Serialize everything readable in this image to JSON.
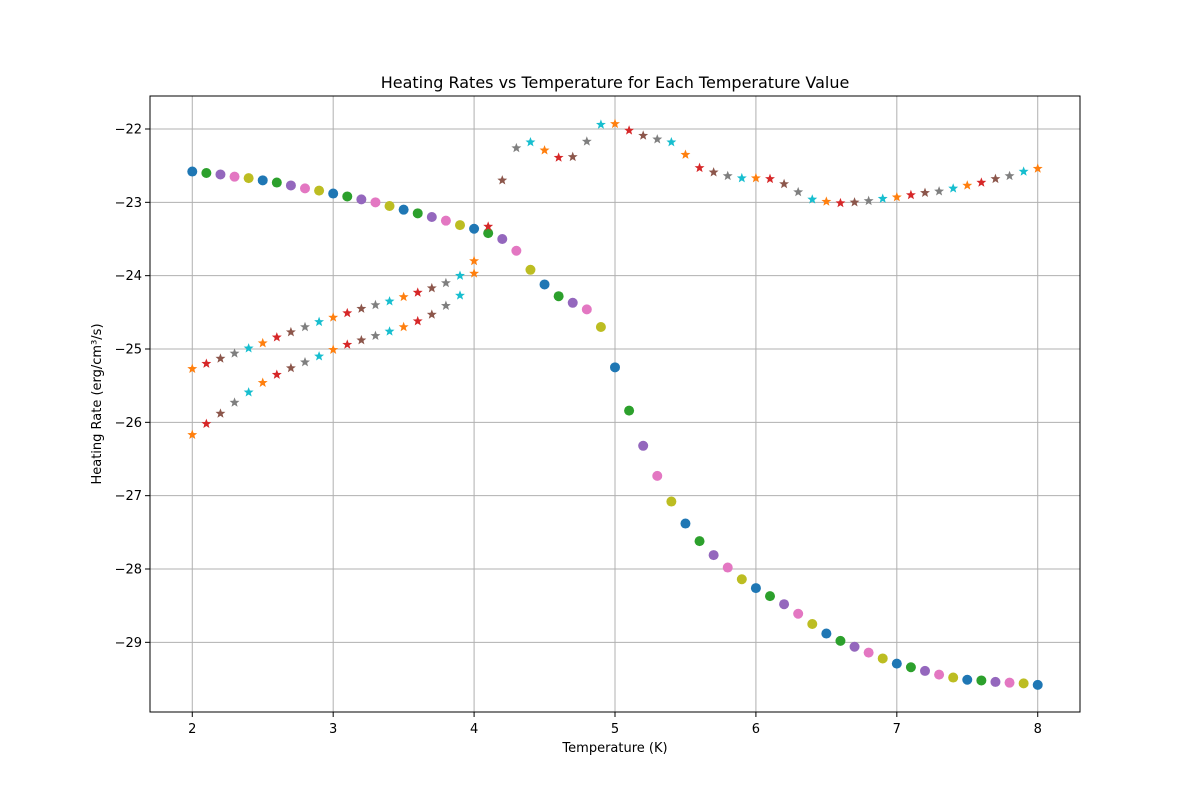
{
  "chart_data": {
    "type": "scatter",
    "title": "Heating Rates vs Temperature for Each Temperature Value",
    "xlabel": "Temperature (K)",
    "ylabel": "Heating Rate (erg/cm³/s)",
    "xlim": [
      1.7,
      8.3
    ],
    "ylim": [
      -29.95,
      -21.55
    ],
    "xticks": [
      2,
      3,
      4,
      5,
      6,
      7,
      8
    ],
    "xtick_labels": [
      "2",
      "3",
      "4",
      "5",
      "6",
      "7",
      "8"
    ],
    "yticks": [
      -22,
      -23,
      -24,
      -25,
      -26,
      -27,
      -28,
      -29
    ],
    "ytick_labels": [
      "−22",
      "−23",
      "−24",
      "−25",
      "−26",
      "−27",
      "−28",
      "−29"
    ],
    "grid": true,
    "palette": [
      "#1f77b4",
      "#2ca02c",
      "#9467bd",
      "#e377c2",
      "#bcbd22",
      "#ff7f0e",
      "#d62728",
      "#8c564b",
      "#7f7f7f",
      "#17becf"
    ],
    "series": [
      {
        "marker": "circle",
        "colors": [
          "#1f77b4",
          "#2ca02c",
          "#9467bd",
          "#e377c2",
          "#bcbd22"
        ],
        "points": [
          [
            2.0,
            -22.58
          ],
          [
            2.1,
            -22.6
          ],
          [
            2.2,
            -22.62
          ],
          [
            2.3,
            -22.65
          ],
          [
            2.4,
            -22.67
          ],
          [
            2.5,
            -22.7
          ],
          [
            2.6,
            -22.73
          ],
          [
            2.7,
            -22.77
          ],
          [
            2.8,
            -22.81
          ],
          [
            2.9,
            -22.84
          ],
          [
            3.0,
            -22.88
          ],
          [
            3.1,
            -22.92
          ],
          [
            3.2,
            -22.96
          ],
          [
            3.3,
            -23.0
          ],
          [
            3.4,
            -23.05
          ],
          [
            3.5,
            -23.1
          ],
          [
            3.6,
            -23.15
          ],
          [
            3.7,
            -23.2
          ],
          [
            3.8,
            -23.25
          ],
          [
            3.9,
            -23.31
          ],
          [
            4.0,
            -23.36
          ],
          [
            4.1,
            -23.42
          ],
          [
            4.2,
            -23.5
          ],
          [
            4.3,
            -23.66
          ],
          [
            4.4,
            -23.92
          ],
          [
            4.5,
            -24.12
          ],
          [
            4.6,
            -24.28
          ],
          [
            4.7,
            -24.37
          ],
          [
            4.8,
            -24.46
          ],
          [
            4.9,
            -24.7
          ],
          [
            5.0,
            -25.25
          ],
          [
            5.1,
            -25.84
          ],
          [
            5.2,
            -26.32
          ],
          [
            5.3,
            -26.73
          ],
          [
            5.4,
            -27.08
          ],
          [
            5.5,
            -27.38
          ],
          [
            5.6,
            -27.62
          ],
          [
            5.7,
            -27.81
          ],
          [
            5.8,
            -27.98
          ],
          [
            5.9,
            -28.14
          ],
          [
            6.0,
            -28.26
          ],
          [
            6.1,
            -28.37
          ],
          [
            6.2,
            -28.48
          ],
          [
            6.3,
            -28.61
          ],
          [
            6.4,
            -28.75
          ],
          [
            6.5,
            -28.88
          ],
          [
            6.6,
            -28.98
          ],
          [
            6.7,
            -29.06
          ],
          [
            6.8,
            -29.14
          ],
          [
            6.9,
            -29.22
          ],
          [
            7.0,
            -29.29
          ],
          [
            7.1,
            -29.34
          ],
          [
            7.2,
            -29.39
          ],
          [
            7.3,
            -29.44
          ],
          [
            7.4,
            -29.48
          ],
          [
            7.5,
            -29.51
          ],
          [
            7.6,
            -29.52
          ],
          [
            7.7,
            -29.54
          ],
          [
            7.8,
            -29.55
          ],
          [
            7.9,
            -29.56
          ],
          [
            8.0,
            -29.58
          ]
        ]
      },
      {
        "marker": "star",
        "colors": [
          "#ff7f0e",
          "#d62728",
          "#8c564b",
          "#7f7f7f",
          "#17becf"
        ],
        "points": [
          [
            2.0,
            -25.27
          ],
          [
            2.1,
            -25.2
          ],
          [
            2.2,
            -25.13
          ],
          [
            2.3,
            -25.06
          ],
          [
            2.4,
            -24.99
          ],
          [
            2.5,
            -24.92
          ],
          [
            2.6,
            -24.84
          ],
          [
            2.7,
            -24.77
          ],
          [
            2.8,
            -24.7
          ],
          [
            2.9,
            -24.63
          ],
          [
            3.0,
            -24.57
          ],
          [
            3.1,
            -24.51
          ],
          [
            3.2,
            -24.45
          ],
          [
            3.3,
            -24.4
          ],
          [
            3.4,
            -24.35
          ],
          [
            3.5,
            -24.29
          ],
          [
            3.6,
            -24.23
          ],
          [
            3.7,
            -24.17
          ],
          [
            3.8,
            -24.1
          ],
          [
            3.9,
            -24.0
          ],
          [
            4.0,
            -23.97
          ],
          [
            4.1,
            -23.33
          ],
          [
            4.2,
            -22.7
          ],
          [
            4.3,
            -22.26
          ],
          [
            4.4,
            -22.18
          ],
          [
            4.5,
            -22.29
          ],
          [
            4.6,
            -22.39
          ],
          [
            4.7,
            -22.38
          ],
          [
            4.8,
            -22.17
          ],
          [
            4.9,
            -21.94
          ],
          [
            5.0,
            -21.93
          ],
          [
            5.1,
            -22.02
          ],
          [
            5.2,
            -22.09
          ],
          [
            5.3,
            -22.14
          ],
          [
            5.4,
            -22.18
          ],
          [
            5.5,
            -22.35
          ],
          [
            5.6,
            -22.53
          ],
          [
            5.7,
            -22.59
          ],
          [
            5.8,
            -22.64
          ],
          [
            5.9,
            -22.67
          ],
          [
            6.0,
            -22.67
          ],
          [
            6.1,
            -22.68
          ],
          [
            6.2,
            -22.75
          ],
          [
            6.3,
            -22.86
          ],
          [
            6.4,
            -22.96
          ],
          [
            6.5,
            -22.99
          ],
          [
            6.6,
            -23.01
          ],
          [
            6.7,
            -23.0
          ],
          [
            6.8,
            -22.98
          ],
          [
            6.9,
            -22.95
          ],
          [
            7.0,
            -22.93
          ],
          [
            7.1,
            -22.9
          ],
          [
            7.2,
            -22.87
          ],
          [
            7.3,
            -22.85
          ],
          [
            7.4,
            -22.81
          ],
          [
            7.5,
            -22.77
          ],
          [
            7.6,
            -22.73
          ],
          [
            7.7,
            -22.68
          ],
          [
            7.8,
            -22.64
          ],
          [
            7.9,
            -22.58
          ],
          [
            8.0,
            -22.54
          ]
        ]
      },
      {
        "marker": "star",
        "colors": [
          "#ff7f0e",
          "#d62728",
          "#8c564b",
          "#7f7f7f",
          "#17becf"
        ],
        "points": [
          [
            2.0,
            -26.17
          ],
          [
            2.1,
            -26.02
          ],
          [
            2.2,
            -25.88
          ],
          [
            2.3,
            -25.73
          ],
          [
            2.4,
            -25.59
          ],
          [
            2.5,
            -25.46
          ],
          [
            2.6,
            -25.35
          ],
          [
            2.7,
            -25.26
          ],
          [
            2.8,
            -25.18
          ],
          [
            2.9,
            -25.1
          ],
          [
            3.0,
            -25.01
          ],
          [
            3.1,
            -24.94
          ],
          [
            3.2,
            -24.88
          ],
          [
            3.3,
            -24.82
          ],
          [
            3.4,
            -24.76
          ],
          [
            3.5,
            -24.7
          ],
          [
            3.6,
            -24.62
          ],
          [
            3.7,
            -24.53
          ],
          [
            3.8,
            -24.41
          ],
          [
            3.9,
            -24.27
          ],
          [
            4.0,
            -23.8
          ]
        ]
      }
    ]
  }
}
